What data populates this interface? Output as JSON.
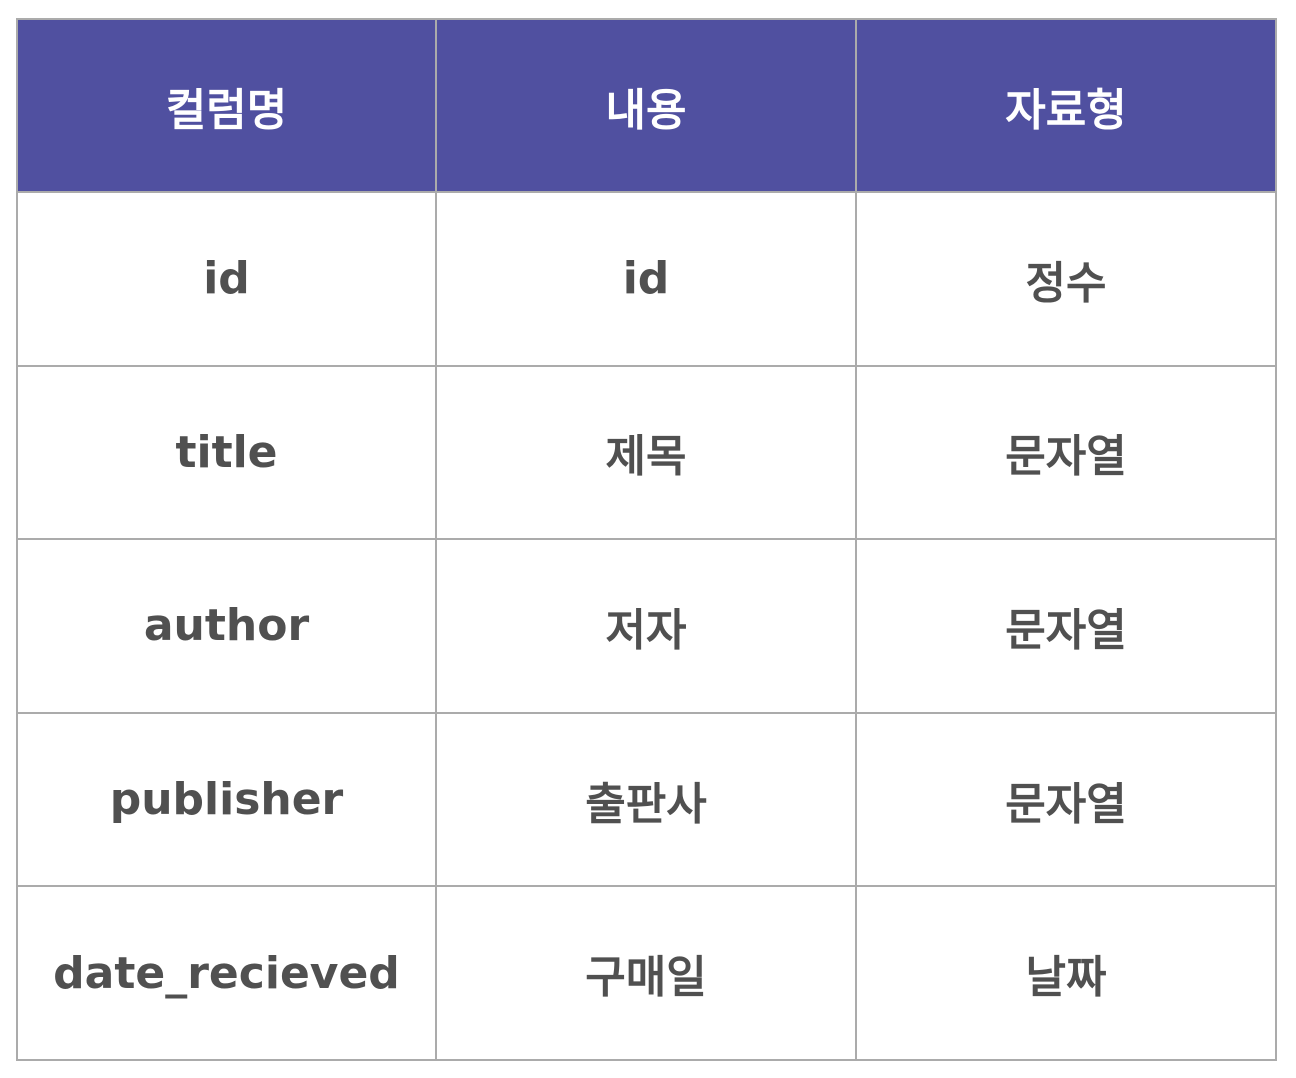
{
  "colors": {
    "header_background": "#5050a0",
    "header_text": "#ffffff",
    "body_text": "#505050",
    "border": "#ababab"
  },
  "table": {
    "headers": [
      "컬럼명",
      "내용",
      "자료형"
    ],
    "rows": [
      [
        "id",
        "id",
        "정수"
      ],
      [
        "title",
        "제목",
        "문자열"
      ],
      [
        "author",
        "저자",
        "문자열"
      ],
      [
        "publisher",
        "출판사",
        "문자열"
      ],
      [
        "date_recieved",
        "구매일",
        "날짜"
      ]
    ]
  }
}
